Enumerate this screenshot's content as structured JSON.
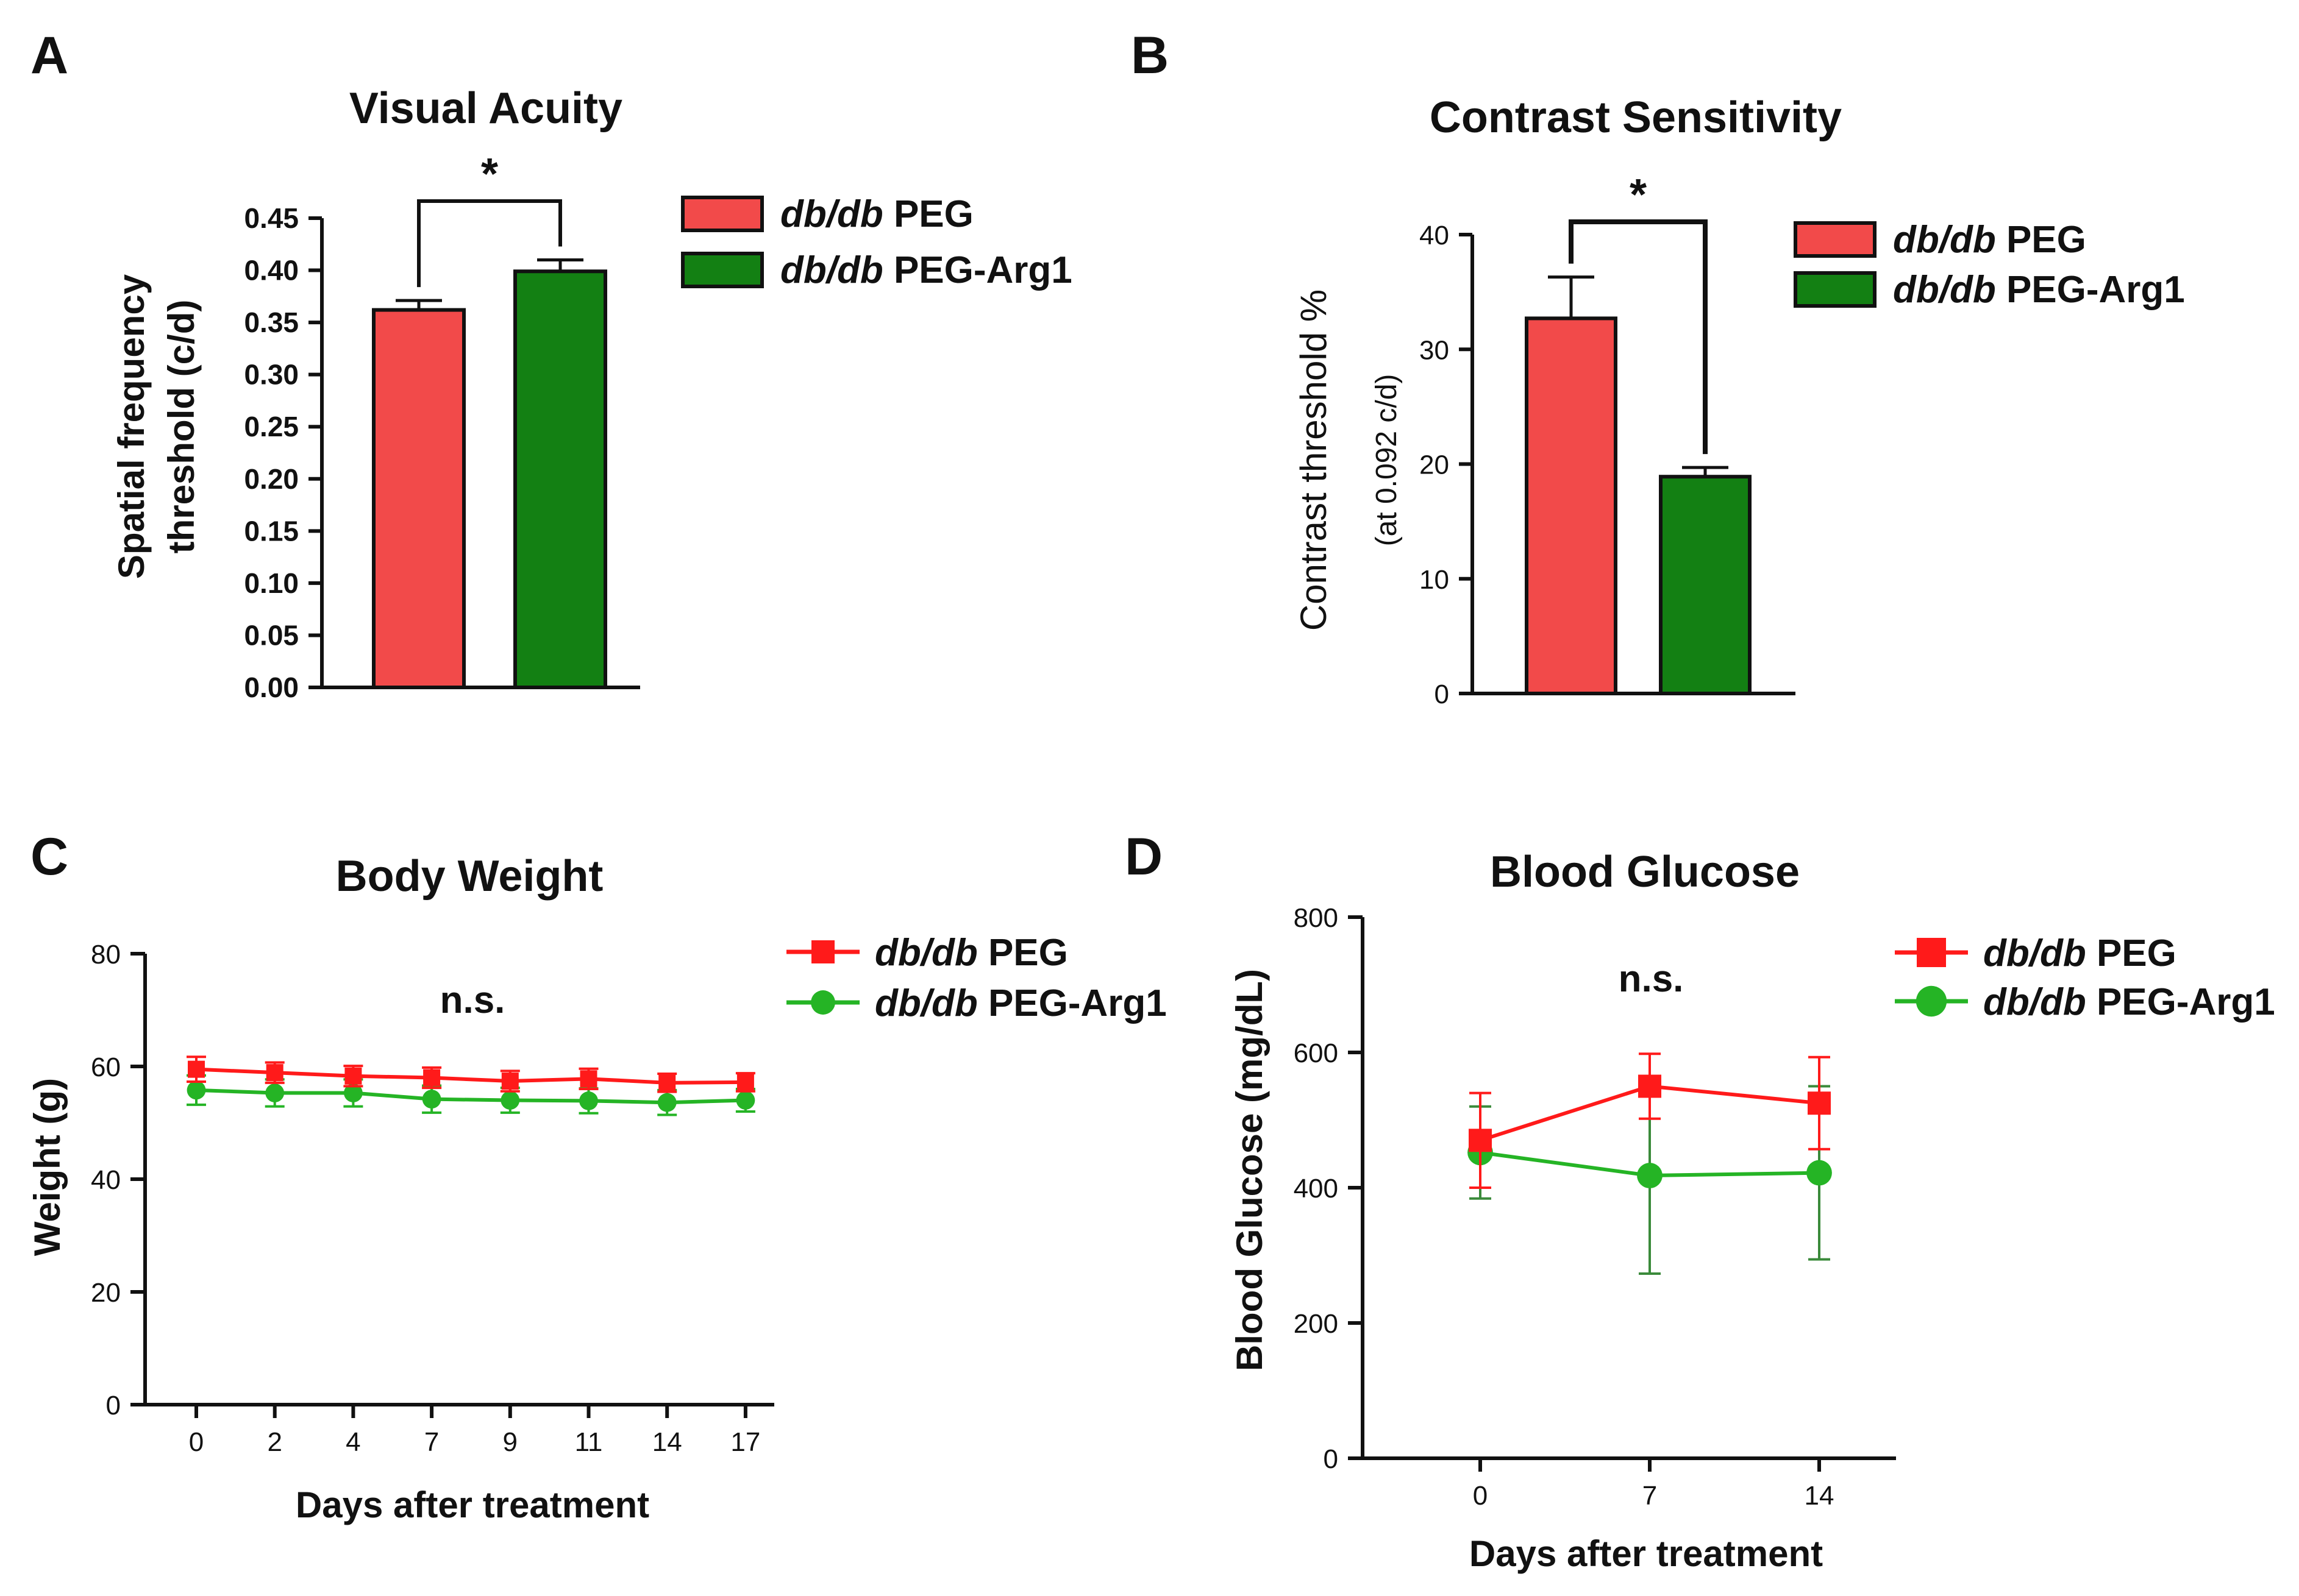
{
  "colors": {
    "red_bar": "#f24a4a",
    "green_bar": "#138013",
    "red_line": "#ff1a1a",
    "green_line": "#25b425",
    "green_err": "#3a8a3a",
    "axis": "#111111"
  },
  "chart_data": [
    {
      "panel": "A",
      "type": "bar",
      "title": "Visual Acuity",
      "ylabel": "Spatial frequency threshold (c/d)",
      "ylabel_lines": [
        "Spatial frequency",
        "threshold (c/d)"
      ],
      "ylim": [
        0,
        0.45
      ],
      "yticks": [
        0.0,
        0.05,
        0.1,
        0.15,
        0.2,
        0.25,
        0.3,
        0.35,
        0.4,
        0.45
      ],
      "ytick_labels": [
        "0.00",
        "0.05",
        "0.10",
        "0.15",
        "0.20",
        "0.25",
        "0.30",
        "0.35",
        "0.40",
        "0.45"
      ],
      "categories": [
        "db/db PEG",
        "db/db PEG-Arg1"
      ],
      "values": [
        0.362,
        0.399
      ],
      "errors": [
        0.009,
        0.011
      ],
      "significance": "*",
      "legend": [
        {
          "italic": "db/db",
          "rest": " PEG",
          "color_key": "red_bar"
        },
        {
          "italic": "db/db",
          "rest": " PEG-Arg1",
          "color_key": "green_bar"
        }
      ]
    },
    {
      "panel": "B",
      "type": "bar",
      "title": "Contrast Sensitivity",
      "ylabel": "Contrast threshold %",
      "ylabel_sub": "(at 0.092 c/d)",
      "ylim": [
        0,
        40
      ],
      "yticks": [
        0,
        10,
        20,
        30,
        40
      ],
      "ytick_labels": [
        "0",
        "10",
        "20",
        "30",
        "40"
      ],
      "categories": [
        "db/db PEG",
        "db/db PEG-Arg1"
      ],
      "values": [
        32.7,
        18.9
      ],
      "errors": [
        3.6,
        0.8
      ],
      "significance": "*",
      "legend": [
        {
          "italic": "db/db",
          "rest": " PEG",
          "color_key": "red_bar"
        },
        {
          "italic": "db/db",
          "rest": " PEG-Arg1",
          "color_key": "green_bar"
        }
      ]
    },
    {
      "panel": "C",
      "type": "line",
      "title": "Body Weight",
      "xlabel": "Days after treatment",
      "ylabel": "Weight (g)",
      "x": [
        0,
        2,
        4,
        7,
        9,
        11,
        14,
        17
      ],
      "x_labels": [
        "0",
        "2",
        "4",
        "7",
        "9",
        "11",
        "14",
        "17"
      ],
      "ylim": [
        0,
        80
      ],
      "yticks": [
        0,
        20,
        40,
        60,
        80
      ],
      "ytick_labels": [
        "0",
        "20",
        "40",
        "60",
        "80"
      ],
      "annotation": "n.s.",
      "series": [
        {
          "name": "db/db PEG",
          "italic": "db/db",
          "rest": " PEG",
          "marker": "square",
          "color_key": "red_line",
          "values": [
            59.5,
            58.9,
            58.3,
            58.0,
            57.4,
            57.8,
            57.1,
            57.2
          ],
          "errors": [
            2.2,
            1.8,
            1.8,
            1.8,
            1.8,
            1.8,
            1.6,
            1.6
          ]
        },
        {
          "name": "db/db PEG-Arg1",
          "italic": "db/db",
          "rest": " PEG-Arg1",
          "marker": "circle",
          "color_key": "green_line",
          "values": [
            55.8,
            55.3,
            55.3,
            54.2,
            54.0,
            53.9,
            53.6,
            54.0
          ],
          "errors": [
            2.6,
            2.4,
            2.4,
            2.4,
            2.2,
            2.2,
            2.2,
            2.0
          ]
        }
      ]
    },
    {
      "panel": "D",
      "type": "line",
      "title": "Blood Glucose",
      "xlabel": "Days after treatment",
      "ylabel": "Blood Glucose (mg/dL)",
      "x": [
        0,
        7,
        14
      ],
      "x_labels": [
        "0",
        "7",
        "14"
      ],
      "ylim": [
        0,
        800
      ],
      "yticks": [
        0,
        200,
        400,
        600,
        800
      ],
      "ytick_labels": [
        "0",
        "200",
        "400",
        "600",
        "800"
      ],
      "annotation": "n.s.",
      "series": [
        {
          "name": "db/db PEG",
          "italic": "db/db",
          "rest": " PEG",
          "marker": "square",
          "color_key": "red_line",
          "values": [
            470,
            550,
            525
          ],
          "errors": [
            70,
            48,
            68
          ]
        },
        {
          "name": "db/db PEG-Arg1",
          "italic": "db/db",
          "rest": " PEG-Arg1",
          "marker": "circle",
          "color_key": "green_line",
          "values": [
            452,
            418,
            422
          ],
          "errors": [
            68,
            145,
            128
          ]
        }
      ]
    }
  ]
}
